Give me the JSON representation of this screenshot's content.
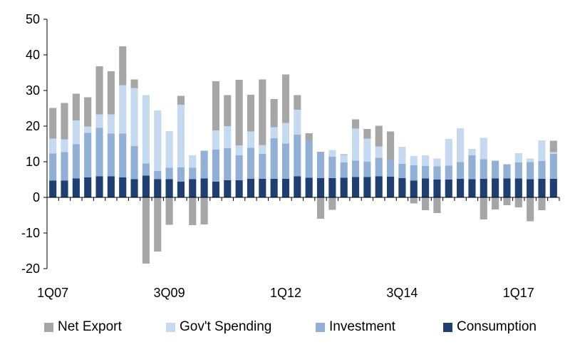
{
  "chart_data": {
    "type": "bar",
    "stacked": true,
    "title": "",
    "xlabel": "",
    "ylabel": "",
    "ylim": [
      -20,
      50
    ],
    "yticks": [
      -20,
      -10,
      0,
      10,
      20,
      30,
      40,
      50
    ],
    "x_tick_labels": [
      "1Q07",
      "3Q09",
      "1Q12",
      "3Q14",
      "1Q17"
    ],
    "x_tick_label_positions": [
      "1Q07",
      "3Q09",
      "1Q12",
      "3Q14",
      "1Q17"
    ],
    "grid": false,
    "legend_position": "bottom",
    "categories": [
      "1Q07",
      "2Q07",
      "3Q07",
      "4Q07",
      "1Q08",
      "2Q08",
      "3Q08",
      "4Q08",
      "1Q09",
      "2Q09",
      "3Q09",
      "4Q09",
      "1Q10",
      "2Q10",
      "3Q10",
      "4Q10",
      "1Q11",
      "2Q11",
      "3Q11",
      "4Q11",
      "1Q12",
      "2Q12",
      "3Q12",
      "4Q12",
      "1Q13",
      "2Q13",
      "3Q13",
      "4Q13",
      "1Q14",
      "2Q14",
      "3Q14",
      "4Q14",
      "1Q15",
      "2Q15",
      "3Q15",
      "4Q15",
      "1Q16",
      "2Q16",
      "3Q16",
      "4Q16",
      "1Q17",
      "2Q17",
      "3Q17",
      "4Q17"
    ],
    "series": [
      {
        "name": "Consumption",
        "color": "#1f3f73",
        "values": [
          4.7,
          4.7,
          5.3,
          5.6,
          5.9,
          5.9,
          5.6,
          5.1,
          6.1,
          5.1,
          5.1,
          4.4,
          5.1,
          5.3,
          4.4,
          4.8,
          4.8,
          5.2,
          5.2,
          5.2,
          5.2,
          5.9,
          5.5,
          5.4,
          5.4,
          5.5,
          5.7,
          5.7,
          5.9,
          5.8,
          5.4,
          4.7,
          5.3,
          5.0,
          5.0,
          5.2,
          5.1,
          5.2,
          5.3,
          5.3,
          5.3,
          5.1,
          5.2,
          5.2
        ]
      },
      {
        "name": "Investment",
        "color": "#92afd6",
        "values": [
          7.6,
          8.0,
          9.6,
          12.5,
          13.6,
          12.0,
          12.3,
          9.3,
          3.4,
          2.3,
          3.2,
          4.0,
          3.2,
          7.8,
          9.0,
          9.0,
          7.0,
          8.7,
          7.0,
          11.4,
          9.9,
          11.7,
          10.5,
          7.4,
          6.0,
          4.3,
          4.6,
          4.3,
          5.2,
          4.7,
          4.0,
          4.3,
          3.5,
          3.7,
          3.9,
          4.7,
          6.7,
          5.5,
          5.0,
          4.0,
          4.5,
          4.8,
          5.0,
          7.0
        ]
      },
      {
        "name": "Gov't Spending",
        "color": "#c5d9f1",
        "values": [
          4.2,
          3.6,
          6.7,
          1.8,
          3.8,
          5.4,
          13.6,
          16.3,
          19.2,
          17.0,
          10.3,
          17.6,
          3.5,
          0,
          5.4,
          6.2,
          2.8,
          4.6,
          2.5,
          3.1,
          5.8,
          7.0,
          0,
          0,
          1.9,
          2.1,
          9.0,
          6.5,
          3.2,
          0,
          4.8,
          2.6,
          3.0,
          2.2,
          7.5,
          9.5,
          1.8,
          6.0,
          0,
          0,
          2.6,
          1.0,
          5.8,
          0.5
        ]
      },
      {
        "name": "Net Export",
        "color": "#a6a6a6",
        "values": [
          8.6,
          10.2,
          7.5,
          8.2,
          13.5,
          12.1,
          10.9,
          2.4,
          -18.6,
          -15.2,
          -7.7,
          2.5,
          -7.8,
          -7.6,
          13.8,
          8.7,
          18.4,
          10.3,
          18.4,
          7.9,
          13.6,
          4.1,
          2.0,
          -6.0,
          -3.5,
          0.2,
          2.6,
          2.7,
          5.8,
          8.0,
          0,
          -1.7,
          -3.6,
          -4.4,
          0,
          0,
          0,
          -6.2,
          -3.4,
          -2.2,
          -2.8,
          -6.7,
          -3.6,
          3.2
        ]
      }
    ]
  },
  "legend": {
    "items": [
      {
        "label": "Net Export",
        "color": "#a6a6a6"
      },
      {
        "label": "Gov't Spending",
        "color": "#c5d9f1"
      },
      {
        "label": "Investment",
        "color": "#92afd6"
      },
      {
        "label": "Consumption",
        "color": "#1f3f73"
      }
    ]
  }
}
